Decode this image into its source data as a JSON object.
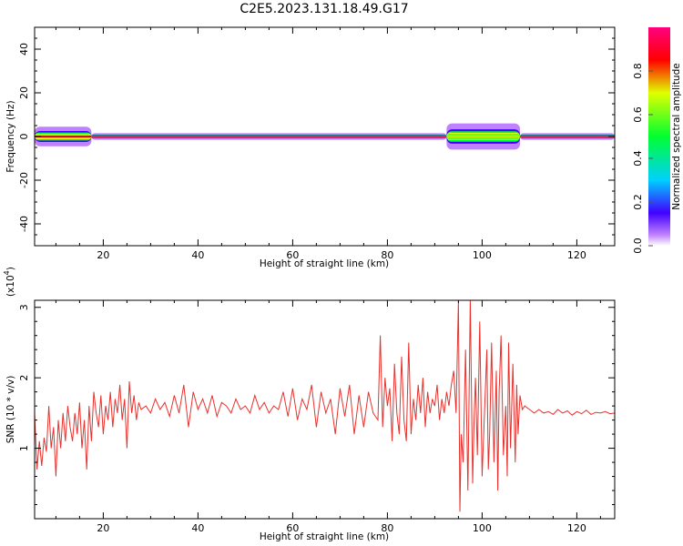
{
  "title": "C2E5.2023.131.18.49.G17",
  "colors": {
    "snr_line": "#e8312c",
    "axes": "#000000",
    "background": "#ffffff"
  },
  "chart_data": [
    {
      "type": "heatmap",
      "title": "C2E5.2023.131.18.49.G17",
      "xlabel": "Height of straight line (km)",
      "ylabel": "Frequency (Hz)",
      "xlim": [
        5.5,
        128
      ],
      "ylim": [
        -50,
        50
      ],
      "x_ticks": [
        20,
        40,
        60,
        80,
        100,
        120
      ],
      "y_ticks": [
        -40,
        -20,
        0,
        20,
        40
      ],
      "colorbar": {
        "label": "Normalized spectral amplitude",
        "range": [
          0,
          1
        ],
        "ticks": [
          "0.0",
          "0.2",
          "0.4",
          "0.6",
          "0.8"
        ],
        "colormap": [
          "#ffffff",
          "#c080ff",
          "#4000ff",
          "#00d0ff",
          "#00ff30",
          "#e0ff00",
          "#ff0000",
          "#ff0080"
        ]
      },
      "features": [
        {
          "x_start": 5.5,
          "x_end": 17.5,
          "freq_spread": 4.5,
          "level": 0.8
        },
        {
          "x_start": 17.5,
          "x_end": 92.5,
          "freq_spread": 1.5,
          "level": 0.95
        },
        {
          "x_start": 92.5,
          "x_end": 108,
          "freq_spread": 6,
          "level": 0.7
        },
        {
          "x_start": 108,
          "x_end": 128,
          "freq_spread": 1.5,
          "level": 1.0
        }
      ]
    },
    {
      "type": "line",
      "xlabel": "Height of straight line (km)",
      "ylabel": "SNR (10 * v/v)",
      "y_multiplier_label": "(x10",
      "y_multiplier_exp": "4",
      "xlim": [
        5.5,
        128
      ],
      "ylim": [
        0,
        3.1
      ],
      "x_ticks": [
        20,
        40,
        60,
        80,
        100,
        120
      ],
      "y_ticks": [
        1,
        2,
        3
      ],
      "series": [
        {
          "color": "#e8312c",
          "x": [
            5.5,
            6.0,
            6.5,
            7.0,
            7.5,
            8.0,
            8.5,
            9.0,
            9.5,
            10.0,
            10.5,
            11.0,
            11.5,
            12.0,
            12.5,
            13.0,
            13.5,
            14.0,
            14.5,
            15.0,
            15.5,
            16.0,
            16.5,
            17.0,
            17.5,
            18.0,
            18.5,
            19.0,
            19.5,
            20.0,
            20.5,
            21.0,
            21.5,
            22.0,
            22.5,
            23.0,
            23.5,
            24.0,
            24.5,
            25.0,
            25.5,
            26.0,
            26.5,
            27.0,
            27.5,
            28.0,
            29,
            30,
            31,
            32,
            33,
            34,
            35,
            36,
            37,
            38,
            39,
            40,
            41,
            42,
            43,
            44,
            45,
            46,
            47,
            48,
            49,
            50,
            51,
            52,
            53,
            54,
            55,
            56,
            57,
            58,
            59,
            60,
            61,
            62,
            63,
            64,
            65,
            66,
            67,
            68,
            69,
            70,
            71,
            72,
            73,
            74,
            75,
            76,
            77,
            78,
            78.5,
            79,
            79.5,
            80,
            80.5,
            81,
            81.5,
            82,
            82.5,
            83,
            83.5,
            84,
            84.5,
            85,
            85.5,
            86,
            86.5,
            87,
            87.5,
            88,
            88.5,
            89,
            89.5,
            90,
            90.5,
            91,
            91.5,
            92,
            92.5,
            93,
            93.5,
            94,
            94.5,
            95,
            95.3,
            95.6,
            96,
            96.5,
            97,
            97.5,
            98,
            98.3,
            98.6,
            99,
            99.5,
            100,
            100.5,
            101,
            101.3,
            101.6,
            102,
            102.5,
            103,
            103.3,
            103.6,
            104,
            104.5,
            105,
            105.3,
            105.6,
            106,
            106.5,
            107,
            107.3,
            107.6,
            108,
            108.5,
            109,
            110,
            111,
            112,
            113,
            114,
            115,
            116,
            117,
            118,
            119,
            120,
            121,
            122,
            123,
            124,
            125,
            126,
            127,
            128
          ],
          "y": [
            1.5,
            0.7,
            1.1,
            0.75,
            1.15,
            0.95,
            1.6,
            1.0,
            1.3,
            0.6,
            1.4,
            1.0,
            1.5,
            1.1,
            1.6,
            1.3,
            1.1,
            1.5,
            1.2,
            1.65,
            1.0,
            1.4,
            0.7,
            1.6,
            1.1,
            1.8,
            1.5,
            1.3,
            1.75,
            1.2,
            1.6,
            1.4,
            1.8,
            1.3,
            1.7,
            1.5,
            1.9,
            1.4,
            1.7,
            1.0,
            1.95,
            1.5,
            1.75,
            1.4,
            1.65,
            1.55,
            1.6,
            1.5,
            1.7,
            1.55,
            1.65,
            1.45,
            1.75,
            1.5,
            1.9,
            1.3,
            1.8,
            1.55,
            1.7,
            1.5,
            1.75,
            1.45,
            1.65,
            1.6,
            1.5,
            1.7,
            1.55,
            1.6,
            1.5,
            1.75,
            1.55,
            1.65,
            1.5,
            1.6,
            1.55,
            1.8,
            1.45,
            1.85,
            1.4,
            1.7,
            1.55,
            1.9,
            1.3,
            1.8,
            1.5,
            1.7,
            1.2,
            1.85,
            1.45,
            1.9,
            1.2,
            1.75,
            1.3,
            1.8,
            1.5,
            1.4,
            2.6,
            1.3,
            2.0,
            1.6,
            1.85,
            1.1,
            2.2,
            1.5,
            1.2,
            2.3,
            1.4,
            1.1,
            2.5,
            1.2,
            1.7,
            1.4,
            1.9,
            1.5,
            2.0,
            1.3,
            1.8,
            1.5,
            1.7,
            1.6,
            1.9,
            1.4,
            1.7,
            1.5,
            1.8,
            1.6,
            1.9,
            2.1,
            1.5,
            3.1,
            0.1,
            1.2,
            0.8,
            2.4,
            0.4,
            3.1,
            0.5,
            1.4,
            2.0,
            0.9,
            2.8,
            0.6,
            1.5,
            2.4,
            0.7,
            1.2,
            2.5,
            0.8,
            2.1,
            0.4,
            1.8,
            2.6,
            0.9,
            1.6,
            0.6,
            2.5,
            1.0,
            2.2,
            0.8,
            1.9,
            1.2,
            1.75,
            1.55,
            1.6,
            1.55,
            1.5,
            1.55,
            1.5,
            1.52,
            1.48,
            1.55,
            1.5,
            1.53,
            1.47,
            1.52,
            1.49,
            1.54,
            1.48,
            1.51,
            1.5,
            1.52,
            1.49,
            1.5
          ]
        }
      ]
    }
  ]
}
